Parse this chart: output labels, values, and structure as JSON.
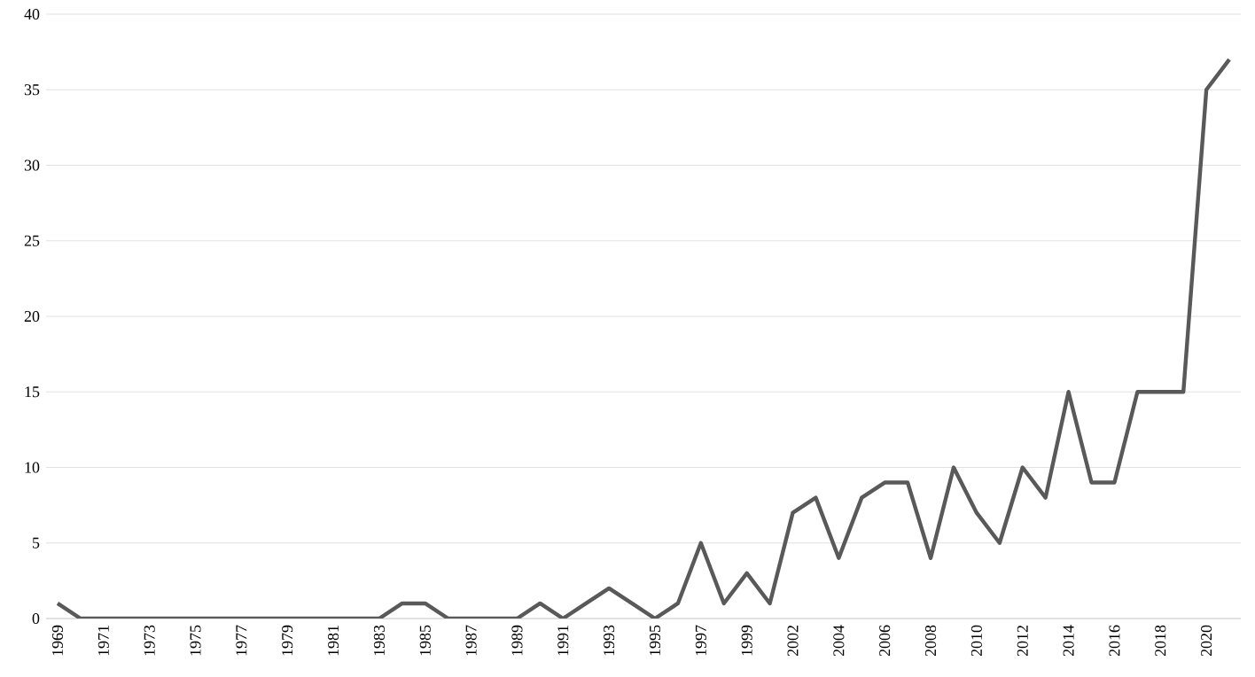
{
  "chart_data": {
    "type": "line",
    "categories": [
      "1969",
      null,
      "1971",
      null,
      "1973",
      null,
      "1975",
      null,
      "1977",
      null,
      "1979",
      null,
      "1981",
      null,
      "1983",
      null,
      "1985",
      null,
      "1987",
      null,
      "1989",
      null,
      "1991",
      null,
      "1993",
      null,
      "1995",
      null,
      "1997",
      null,
      "1999",
      null,
      "2002",
      null,
      "2004",
      null,
      "2006",
      null,
      "2008",
      null,
      "2010",
      null,
      "2012",
      null,
      "2014",
      null,
      "2016",
      null,
      "2018",
      null,
      "2020",
      null
    ],
    "series": [
      {
        "color": "#595959",
        "values": [
          1,
          0,
          0,
          0,
          0,
          0,
          0,
          0,
          0,
          0,
          0,
          0,
          0,
          0,
          0,
          1,
          1,
          0,
          0,
          0,
          0,
          1,
          0,
          1,
          2,
          1,
          0,
          1,
          5,
          1,
          3,
          1,
          7,
          8,
          4,
          8,
          9,
          9,
          4,
          10,
          7,
          5,
          10,
          8,
          15,
          9,
          9,
          15,
          15,
          15,
          35,
          37
        ]
      }
    ],
    "ylim": [
      0,
      40
    ],
    "yticks": [
      0,
      5,
      10,
      15,
      20,
      25,
      30,
      35,
      40
    ],
    "grid": "y",
    "marker": "none",
    "line_style": "solid"
  }
}
